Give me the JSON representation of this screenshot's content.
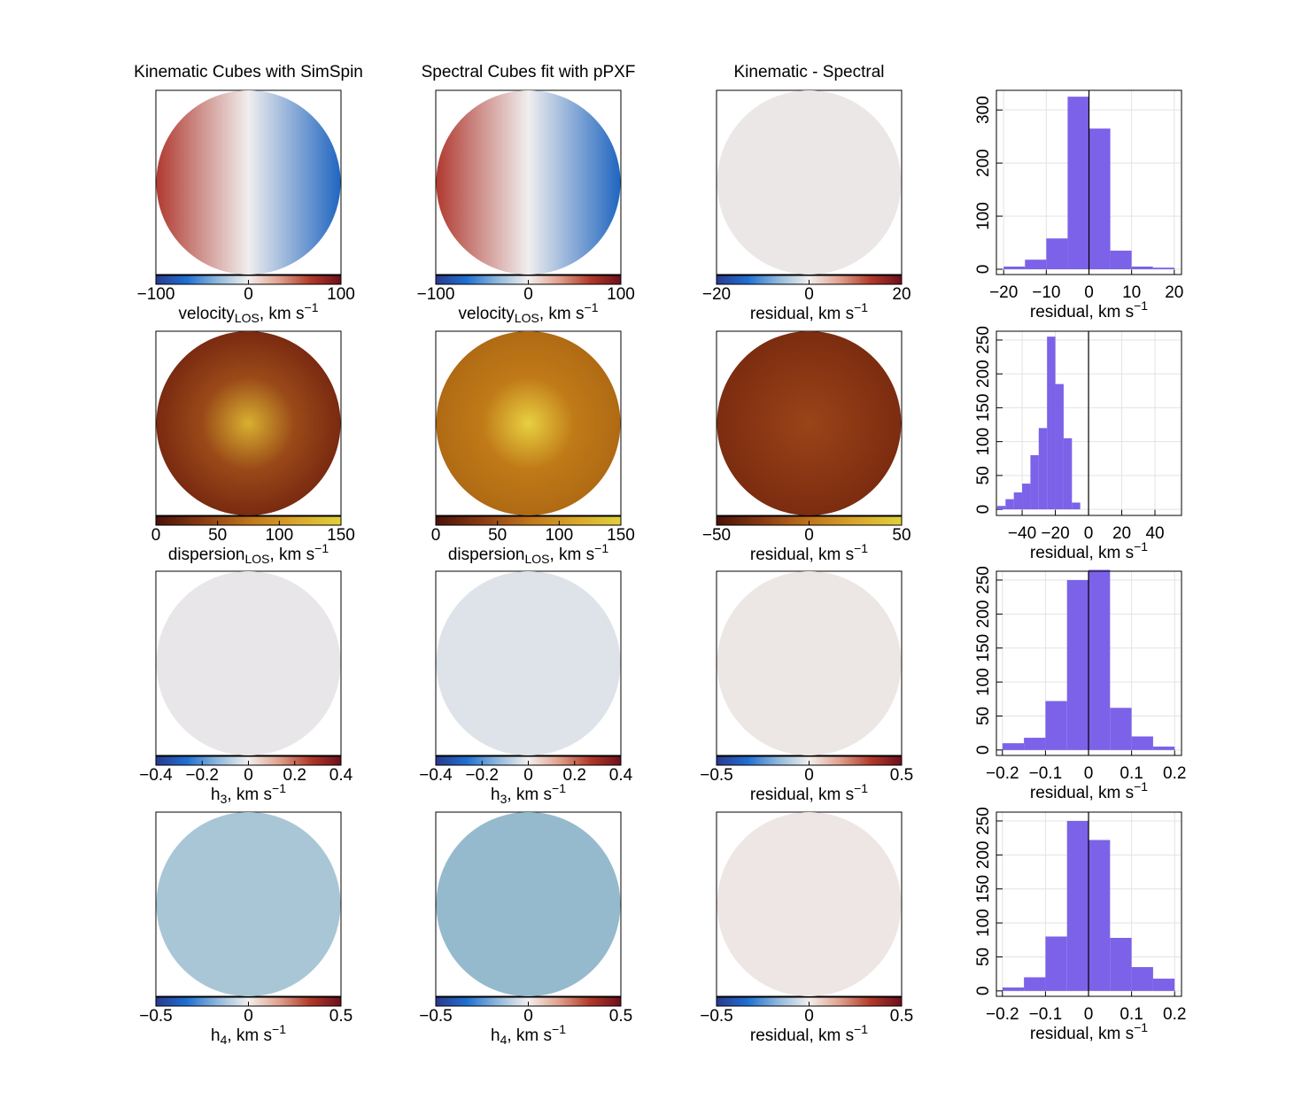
{
  "chart_data": [
    {
      "type": "heatmap",
      "title": "Kinematic Cubes with SimSpin",
      "xlim": [
        -100,
        100
      ],
      "xticks": [
        {
          "value": -100,
          "label": "−100"
        },
        0,
        100
      ],
      "xlabel": {
        "text": "velocity",
        "sub": "LOS",
        "unit": ", km s",
        "sup": "−1"
      },
      "cmap": [
        "#2a3a8f",
        "#1f6fd0",
        "#8fb8dc",
        "#f3f0ee",
        "#e0a08c",
        "#b03a2a",
        "#6e0f1c"
      ],
      "fill": [
        "#b03a30",
        "#f0eeee",
        "#2066c0"
      ],
      "fill_type": "linear"
    },
    {
      "type": "heatmap",
      "title": "Spectral Cubes fit with pPXF",
      "xlim": [
        -100,
        100
      ],
      "xticks": [
        {
          "value": -100,
          "label": "−100"
        },
        0,
        100
      ],
      "xlabel": {
        "text": "velocity",
        "sub": "LOS",
        "unit": ", km s",
        "sup": "−1"
      },
      "cmap": [
        "#2a3a8f",
        "#1f6fd0",
        "#8fb8dc",
        "#f3f0ee",
        "#e0a08c",
        "#b03a2a",
        "#6e0f1c"
      ],
      "fill": [
        "#b03a30",
        "#f0eeee",
        "#2066c0"
      ],
      "fill_type": "linear"
    },
    {
      "type": "heatmap",
      "title": "Kinematic - Spectral",
      "xlim": [
        -20,
        20
      ],
      "xticks": [
        {
          "value": -20,
          "label": "−20"
        },
        0,
        20
      ],
      "xlabel": {
        "text": "residual, km s",
        "sup": "−1"
      },
      "cmap": [
        "#2a3a8f",
        "#1f6fd0",
        "#8fb8dc",
        "#f3f0ee",
        "#e0a08c",
        "#b03a2a",
        "#6e0f1c"
      ],
      "fill": "#ebe7e7"
    },
    {
      "type": "histogram",
      "bins": [
        -20,
        -15,
        -10,
        -5,
        0,
        5,
        10,
        15,
        20
      ],
      "counts": [
        5,
        18,
        58,
        325,
        265,
        35,
        5,
        3
      ],
      "color": "#7b62e8",
      "xlim": [
        -21.7,
        21.7
      ],
      "ylim": [
        -10,
        337
      ],
      "xticks": [
        {
          "value": -20,
          "label": "−20"
        },
        {
          "value": -10,
          "label": "−10"
        },
        0,
        10,
        20
      ],
      "yticks": [
        0,
        100,
        200,
        300
      ],
      "vline": 0,
      "grid": true,
      "xlabel": {
        "text": "residual, km s",
        "sup": "−1"
      }
    },
    {
      "type": "heatmap",
      "xlim": [
        0,
        150
      ],
      "xticks": [
        0,
        50,
        100,
        150
      ],
      "xlabel": {
        "text": "dispersion",
        "sub": "LOS",
        "unit": ", km s",
        "sup": "−1"
      },
      "cmap": [
        "#4a1208",
        "#8b3a12",
        "#c0741a",
        "#d9a52a",
        "#e0d23a"
      ],
      "fill": [
        "#d8b030",
        "#9a4a18",
        "#7a2a10"
      ],
      "fill_type": "radial"
    },
    {
      "type": "heatmap",
      "xlim": [
        0,
        150
      ],
      "xticks": [
        0,
        50,
        100,
        150
      ],
      "xlabel": {
        "text": "dispersion",
        "sub": "LOS",
        "unit": ", km s",
        "sup": "−1"
      },
      "cmap": [
        "#4a1208",
        "#8b3a12",
        "#c0741a",
        "#d9a52a",
        "#e0d23a"
      ],
      "fill": [
        "#e8d040",
        "#c07a18",
        "#b06a14"
      ],
      "fill_type": "radial"
    },
    {
      "type": "heatmap",
      "xlim": [
        -50,
        50
      ],
      "xticks": [
        {
          "value": -50,
          "label": "−50"
        },
        0,
        50
      ],
      "xlabel": {
        "text": "residual, km s",
        "sup": "−1"
      },
      "cmap": [
        "#4a1208",
        "#8b3a12",
        "#c0741a",
        "#d9a52a",
        "#e0d23a"
      ],
      "fill": [
        "#9a4418",
        "#7c2c10"
      ],
      "fill_type": "radial"
    },
    {
      "type": "histogram",
      "bins": [
        -55,
        -50,
        -45,
        -40,
        -35,
        -30,
        -25,
        -20,
        -15,
        -10,
        -5
      ],
      "counts": [
        5,
        15,
        25,
        38,
        80,
        120,
        255,
        185,
        105,
        10
      ],
      "color": "#7b62e8",
      "xlim": [
        -55.5,
        56
      ],
      "ylim": [
        -9,
        263
      ],
      "xticks": [
        {
          "value": -40,
          "label": "−40"
        },
        {
          "value": -20,
          "label": "−20"
        },
        0,
        20,
        40
      ],
      "yticks": [
        0,
        50,
        100,
        150,
        200,
        250
      ],
      "vline": 0,
      "grid": true,
      "xlabel": {
        "text": "residual, km s",
        "sup": "−1"
      }
    },
    {
      "type": "heatmap",
      "xlim": [
        -0.4,
        0.4
      ],
      "xticks": [
        {
          "value": -0.4,
          "label": "−0.4"
        },
        {
          "value": -0.2,
          "label": "−0.2"
        },
        0,
        0.2,
        0.4
      ],
      "xlabel": {
        "text": "h",
        "sub": "3",
        "unit": ", km s",
        "sup": "−1"
      },
      "cmap": [
        "#2a3a8f",
        "#1f6fd0",
        "#8fb8dc",
        "#f3f0ee",
        "#e0a08c",
        "#b03a2a",
        "#6e0f1c"
      ],
      "fill": "#e8e6e9"
    },
    {
      "type": "heatmap",
      "xlim": [
        -0.4,
        0.4
      ],
      "xticks": [
        {
          "value": -0.4,
          "label": "−0.4"
        },
        {
          "value": -0.2,
          "label": "−0.2"
        },
        0,
        0.2,
        0.4
      ],
      "xlabel": {
        "text": "h",
        "sub": "3",
        "unit": ", km s",
        "sup": "−1"
      },
      "cmap": [
        "#2a3a8f",
        "#1f6fd0",
        "#8fb8dc",
        "#f3f0ee",
        "#e0a08c",
        "#b03a2a",
        "#6e0f1c"
      ],
      "fill": "#dde3e8"
    },
    {
      "type": "heatmap",
      "xlim": [
        -0.5,
        0.5
      ],
      "xticks": [
        {
          "value": -0.5,
          "label": "−0.5"
        },
        0,
        0.5
      ],
      "xlabel": {
        "text": "residual, km s",
        "sup": "−1"
      },
      "cmap": [
        "#2a3a8f",
        "#1f6fd0",
        "#8fb8dc",
        "#f3f0ee",
        "#e0a08c",
        "#b03a2a",
        "#6e0f1c"
      ],
      "fill": "#ece6e4"
    },
    {
      "type": "histogram",
      "bins": [
        -0.2,
        -0.15,
        -0.1,
        -0.05,
        0,
        0.05,
        0.1,
        0.15,
        0.2
      ],
      "counts": [
        10,
        18,
        72,
        250,
        265,
        62,
        20,
        5
      ],
      "color": "#7b62e8",
      "xlim": [
        -0.214,
        0.216
      ],
      "ylim": [
        -8,
        263
      ],
      "xticks": [
        {
          "value": -0.2,
          "label": "−0.2"
        },
        {
          "value": -0.1,
          "label": "−0.1"
        },
        0,
        0.1,
        0.2
      ],
      "yticks": [
        0,
        50,
        100,
        150,
        200,
        250
      ],
      "vline": 0,
      "grid": true,
      "xlabel": {
        "text": "residual, km s",
        "sup": "−1"
      }
    },
    {
      "type": "heatmap",
      "xlim": [
        -0.5,
        0.5
      ],
      "xticks": [
        {
          "value": -0.5,
          "label": "−0.5"
        },
        0,
        0.5
      ],
      "xlabel": {
        "text": "h",
        "sub": "4",
        "unit": ", km s",
        "sup": "−1"
      },
      "cmap": [
        "#2a3a8f",
        "#1f6fd0",
        "#8fb8dc",
        "#f3f0ee",
        "#e0a08c",
        "#b03a2a",
        "#6e0f1c"
      ],
      "fill": "#a9c6d6"
    },
    {
      "type": "heatmap",
      "xlim": [
        -0.5,
        0.5
      ],
      "xticks": [
        {
          "value": -0.5,
          "label": "−0.5"
        },
        0,
        0.5
      ],
      "xlabel": {
        "text": "h",
        "sub": "4",
        "unit": ", km s",
        "sup": "−1"
      },
      "cmap": [
        "#2a3a8f",
        "#1f6fd0",
        "#8fb8dc",
        "#f3f0ee",
        "#e0a08c",
        "#b03a2a",
        "#6e0f1c"
      ],
      "fill": "#95bacd"
    },
    {
      "type": "heatmap",
      "xlim": [
        -0.5,
        0.5
      ],
      "xticks": [
        {
          "value": -0.5,
          "label": "−0.5"
        },
        0,
        0.5
      ],
      "xlabel": {
        "text": "residual, km s",
        "sup": "−1"
      },
      "cmap": [
        "#2a3a8f",
        "#1f6fd0",
        "#8fb8dc",
        "#f3f0ee",
        "#e0a08c",
        "#b03a2a",
        "#6e0f1c"
      ],
      "fill": "#eee6e4"
    },
    {
      "type": "histogram",
      "bins": [
        -0.2,
        -0.15,
        -0.1,
        -0.05,
        0,
        0.05,
        0.1,
        0.15,
        0.2
      ],
      "counts": [
        5,
        20,
        80,
        250,
        222,
        78,
        35,
        18
      ],
      "color": "#7b62e8",
      "xlim": [
        -0.214,
        0.216
      ],
      "ylim": [
        -8,
        263
      ],
      "xticks": [
        {
          "value": -0.2,
          "label": "−0.2"
        },
        {
          "value": -0.1,
          "label": "−0.1"
        },
        0,
        0.1,
        0.2
      ],
      "yticks": [
        0,
        50,
        100,
        150,
        200,
        250
      ],
      "vline": 0,
      "grid": true,
      "xlabel": {
        "text": "residual, km s",
        "sup": "−1"
      }
    }
  ]
}
